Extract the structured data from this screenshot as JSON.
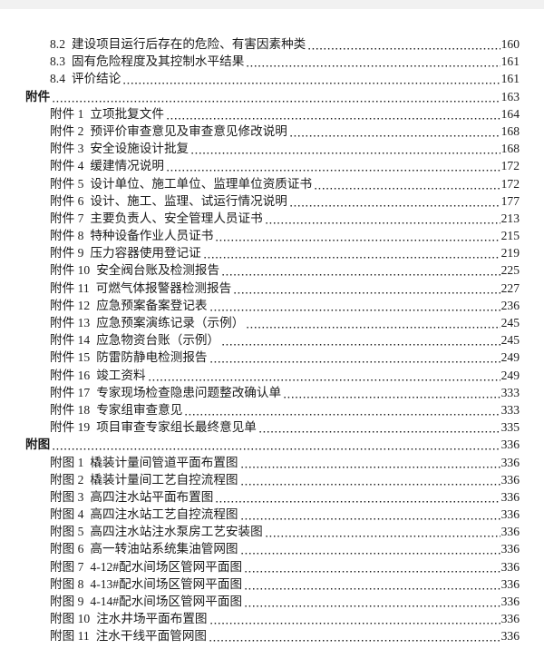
{
  "document": {
    "colors": {
      "background": "#ffffff",
      "text": "#1b1b1b",
      "leader_dots": "#1c1c1c",
      "top_edge_band": "#f1f1f1"
    },
    "toc": {
      "entries": [
        {
          "num": "8.2",
          "title": "建设项目运行后存在的危险、有害因素种类",
          "page": "160",
          "level": 2,
          "bold": false
        },
        {
          "num": "8.3",
          "title": "固有危险程度及其控制水平结果",
          "page": "161",
          "level": 2,
          "bold": false
        },
        {
          "num": "8.4",
          "title": "评价结论",
          "page": "161",
          "level": 2,
          "bold": false
        },
        {
          "num": "附件",
          "title": "",
          "page": "163",
          "level": 1,
          "bold": true
        },
        {
          "num": "附件 1",
          "title": "立项批复文件",
          "page": "164",
          "level": 2,
          "bold": false
        },
        {
          "num": "附件 2",
          "title": "预评价审查意见及审查意见修改说明",
          "page": "168",
          "level": 2,
          "bold": false
        },
        {
          "num": "附件 3",
          "title": "安全设施设计批复",
          "page": "168",
          "level": 2,
          "bold": false
        },
        {
          "num": "附件 4",
          "title": "缓建情况说明",
          "page": "172",
          "level": 2,
          "bold": false
        },
        {
          "num": "附件 5",
          "title": "设计单位、施工单位、监理单位资质证书",
          "page": "172",
          "level": 2,
          "bold": false
        },
        {
          "num": "附件 6",
          "title": "设计、施工、监理、试运行情况说明",
          "page": "177",
          "level": 2,
          "bold": false
        },
        {
          "num": "附件 7",
          "title": "主要负责人、安全管理人员证书",
          "page": "213",
          "level": 2,
          "bold": false
        },
        {
          "num": "附件 8",
          "title": "特种设备作业人员证书",
          "page": "215",
          "level": 2,
          "bold": false
        },
        {
          "num": "附件 9",
          "title": "压力容器使用登记证",
          "page": "219",
          "level": 2,
          "bold": false
        },
        {
          "num": "附件 10",
          "title": "安全阀台账及检测报告",
          "page": "225",
          "level": 2,
          "bold": false
        },
        {
          "num": "附件 11",
          "title": "可燃气体报警器检测报告",
          "page": "227",
          "level": 2,
          "bold": false
        },
        {
          "num": "附件 12",
          "title": "应急预案备案登记表",
          "page": "236",
          "level": 2,
          "bold": false
        },
        {
          "num": "附件 13",
          "title": "应急预案演练记录（示例）",
          "page": "245",
          "level": 2,
          "bold": false
        },
        {
          "num": "附件 14",
          "title": "应急物资台账（示例）",
          "page": "245",
          "level": 2,
          "bold": false
        },
        {
          "num": "附件 15",
          "title": "防雷防静电检测报告",
          "page": "249",
          "level": 2,
          "bold": false
        },
        {
          "num": "附件 16",
          "title": "竣工资料",
          "page": "249",
          "level": 2,
          "bold": false
        },
        {
          "num": "附件 17",
          "title": "专家现场检查隐患问题整改确认单",
          "page": "333",
          "level": 2,
          "bold": false
        },
        {
          "num": "附件 18",
          "title": "专家组审查意见",
          "page": "333",
          "level": 2,
          "bold": false
        },
        {
          "num": "附件 19",
          "title": "项目审查专家组长最终意见单",
          "page": "335",
          "level": 2,
          "bold": false
        },
        {
          "num": "附图",
          "title": "",
          "page": "336",
          "level": 1,
          "bold": true
        },
        {
          "num": "附图 1",
          "title": "橇装计量间管道平面布置图",
          "page": "336",
          "level": 2,
          "bold": false
        },
        {
          "num": "附图 2",
          "title": "橇装计量间工艺自控流程图",
          "page": "336",
          "level": 2,
          "bold": false
        },
        {
          "num": "附图 3",
          "title": "高四注水站平面布置图",
          "page": "336",
          "level": 2,
          "bold": false
        },
        {
          "num": "附图 4",
          "title": "高四注水站工艺自控流程图",
          "page": "336",
          "level": 2,
          "bold": false
        },
        {
          "num": "附图 5",
          "title": "高四注水站注水泵房工艺安装图",
          "page": "336",
          "level": 2,
          "bold": false
        },
        {
          "num": "附图 6",
          "title": "高一转油站系统集油管网图",
          "page": "336",
          "level": 2,
          "bold": false
        },
        {
          "num": "附图 7",
          "title": "4-12#配水间场区管网平面图",
          "page": "336",
          "level": 2,
          "bold": false
        },
        {
          "num": "附图 8",
          "title": "4-13#配水间场区管网平面图",
          "page": "336",
          "level": 2,
          "bold": false
        },
        {
          "num": "附图 9",
          "title": "4-14#配水间场区管网平面图",
          "page": "336",
          "level": 2,
          "bold": false
        },
        {
          "num": "附图 10",
          "title": "注水井场平面布置图",
          "page": "336",
          "level": 2,
          "bold": false
        },
        {
          "num": "附图 11",
          "title": "注水干线平面管网图",
          "page": "336",
          "level": 2,
          "bold": false
        }
      ]
    }
  }
}
